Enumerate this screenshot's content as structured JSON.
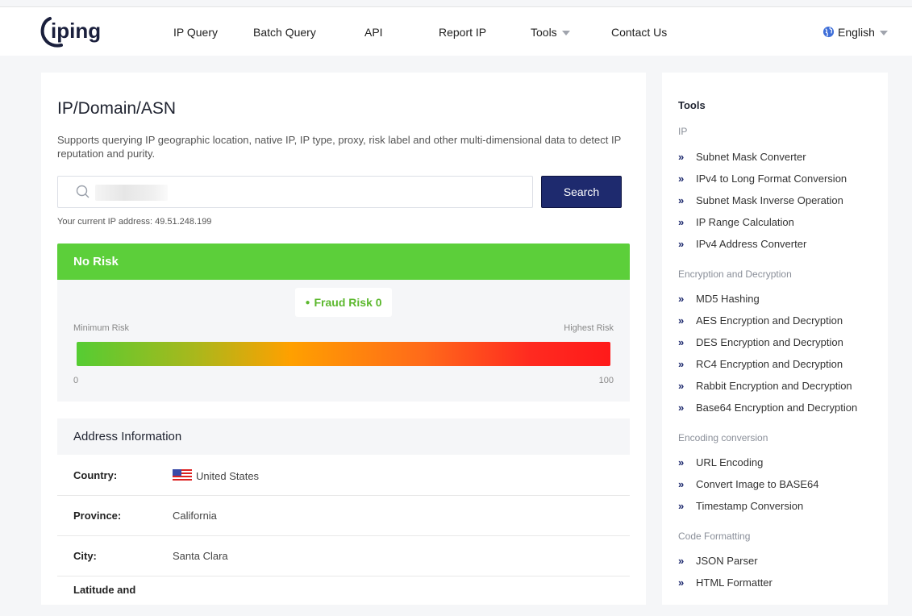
{
  "header": {
    "logo_text": "iping",
    "nav": [
      "IP Query",
      "Batch Query",
      "API",
      "Report IP",
      "Tools",
      "Contact Us"
    ],
    "language": "English"
  },
  "main": {
    "title": "IP/Domain/ASN",
    "description": "Supports querying IP geographic location, native IP, IP type, proxy, risk label and other multi-dimensional data to detect IP reputation and purity.",
    "search": {
      "value": "",
      "button_label": "Search"
    },
    "current_ip_label": "Your current IP address:",
    "current_ip": "49.51.248.199"
  },
  "risk": {
    "status": "No Risk",
    "fraud_label": "Fraud Risk",
    "fraud_score": "0",
    "min_label": "Minimum Risk",
    "max_label": "Highest Risk",
    "scale_min": "0",
    "scale_max": "100",
    "colors": {
      "header": "#5ccf3a",
      "low": "#55cc33",
      "mid": "#ffa000",
      "high": "#ff1a1a"
    }
  },
  "address": {
    "heading": "Address Information",
    "rows": [
      {
        "label": "Country:",
        "value": "United States",
        "flag": "us-flag-icon"
      },
      {
        "label": "Province:",
        "value": "California"
      },
      {
        "label": "City:",
        "value": "Santa Clara"
      },
      {
        "label": "Latitude and",
        "value": ""
      }
    ]
  },
  "sidebar": {
    "title": "Tools",
    "groups": [
      {
        "name": "IP",
        "items": [
          "Subnet Mask Converter",
          "IPv4 to Long Format Conversion",
          "Subnet Mask Inverse Operation",
          "IP Range Calculation",
          "IPv4 Address Converter"
        ]
      },
      {
        "name": "Encryption and Decryption",
        "items": [
          "MD5 Hashing",
          "AES Encryption and Decryption",
          "DES Encryption and Decryption",
          "RC4 Encryption and Decryption",
          "Rabbit Encryption and Decryption",
          "Base64 Encryption and Decryption"
        ]
      },
      {
        "name": "Encoding conversion",
        "items": [
          "URL Encoding",
          "Convert Image to BASE64",
          "Timestamp Conversion"
        ]
      },
      {
        "name": "Code Formatting",
        "items": [
          "JSON Parser",
          "HTML Formatter"
        ]
      }
    ]
  }
}
